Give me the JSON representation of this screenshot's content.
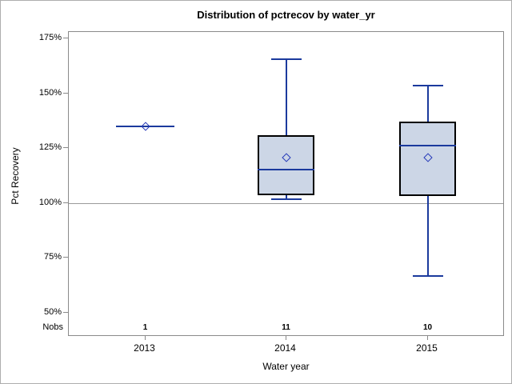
{
  "figure": {
    "background": "#ffffff",
    "border_color": "#aeaeae"
  },
  "axes": {
    "nobs_row_label": "Nobs"
  },
  "chart_data": {
    "type": "boxplot",
    "title": "Distribution of pctrecov by water_yr",
    "xlabel": "Water year",
    "ylabel": "Pct Recovery",
    "y_unit": "%",
    "ylim_pct": [
      40,
      178
    ],
    "grid": "off",
    "reference_line_value": 100,
    "y_ticks": [
      {
        "label": "175%",
        "value": 175
      },
      {
        "label": "150%",
        "value": 150
      },
      {
        "label": "125%",
        "value": 125
      },
      {
        "label": "100%",
        "value": 100
      },
      {
        "label": "75%",
        "value": 75
      },
      {
        "label": "50%",
        "value": 50
      }
    ],
    "categories": [
      "2013",
      "2014",
      "2015"
    ],
    "nobs": [
      "1",
      "11",
      "10"
    ],
    "series": [
      {
        "category": "2013",
        "n": 1,
        "min": 135,
        "q1": 135,
        "median": 135,
        "q3": 135,
        "max": 135,
        "mean": 135
      },
      {
        "category": "2014",
        "n": 11,
        "min": 102,
        "q1": 103.5,
        "median": 115,
        "q3": 131,
        "max": 166,
        "mean": 120.5
      },
      {
        "category": "2015",
        "n": 10,
        "min": 67,
        "q1": 103,
        "median": 126,
        "q3": 137,
        "max": 154,
        "mean": 120.5
      }
    ],
    "colors": {
      "box_fill": "#ccd6e6",
      "box_border": "#000000",
      "whisker": "#1b3a9d",
      "median": "#1b3a9d",
      "mean_marker": "#2438b8",
      "reference_line": "#9b9b9b",
      "axis": "#8a8a8a"
    }
  }
}
